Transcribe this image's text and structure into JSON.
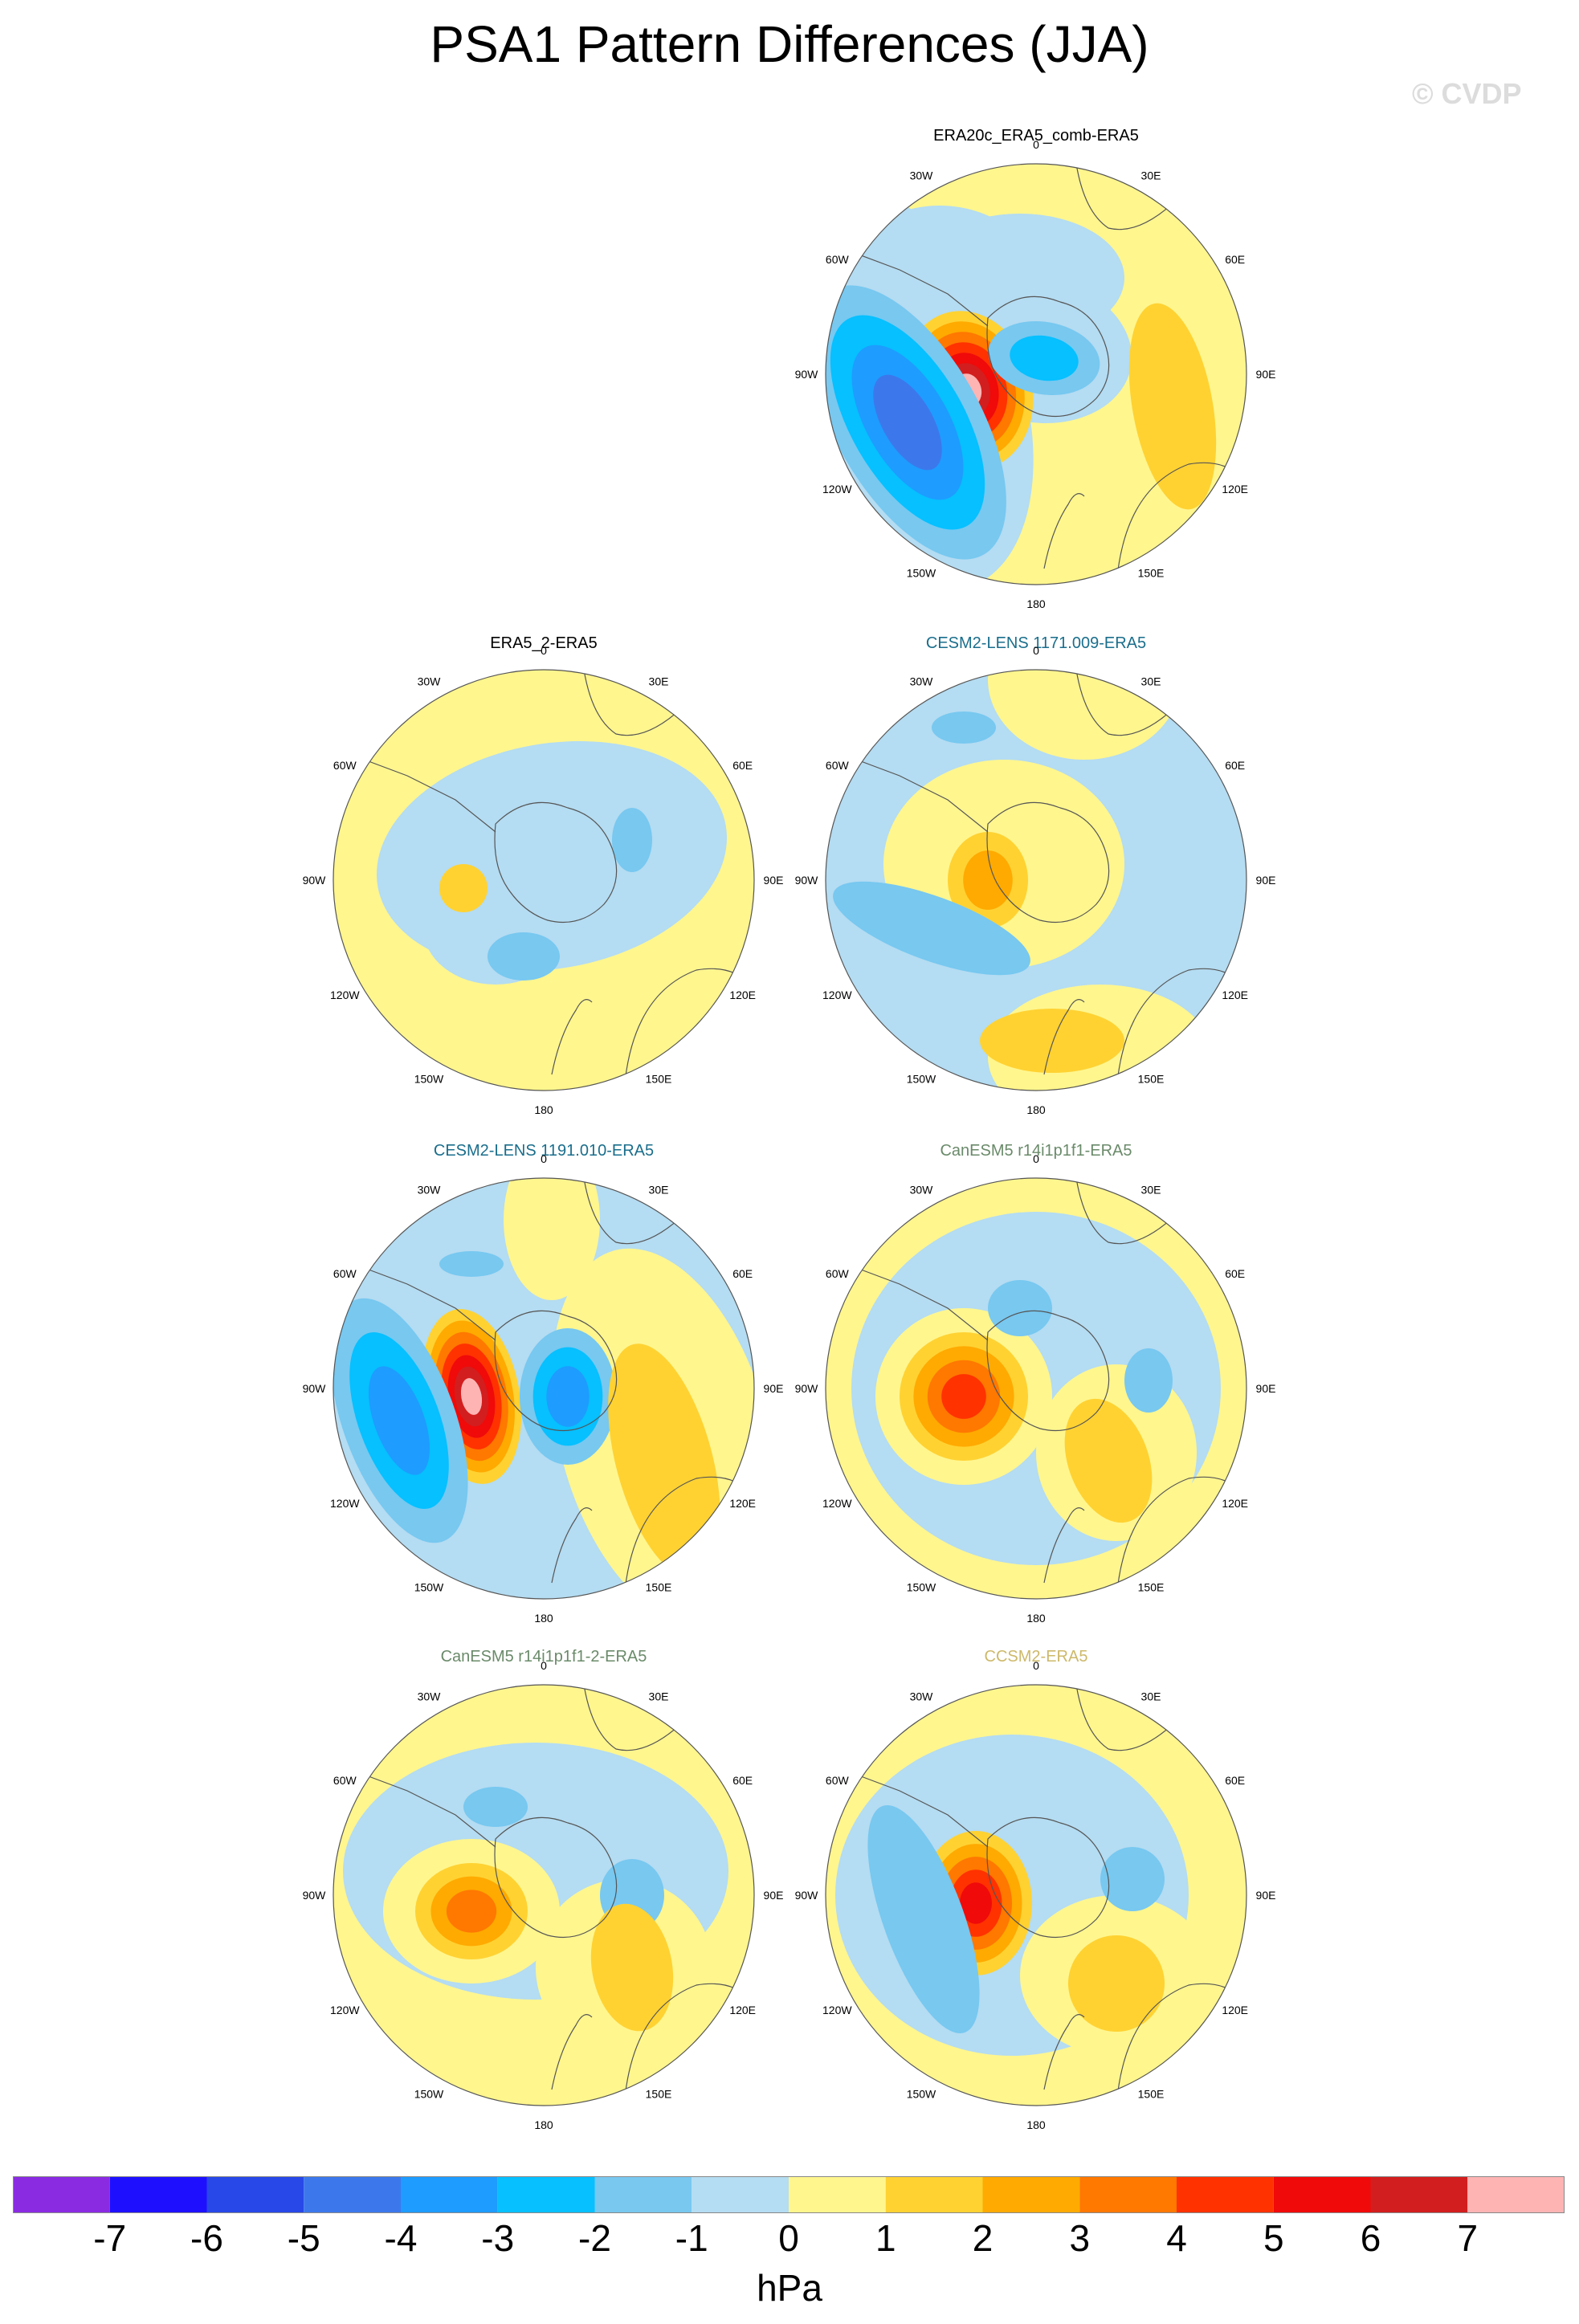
{
  "title": "PSA1 Pattern Differences (JJA)",
  "watermark": "© CVDP",
  "unit": "hPa",
  "lon_labels": [
    "0",
    "30E",
    "60E",
    "90E",
    "120E",
    "150E",
    "180",
    "150W",
    "120W",
    "90W",
    "60W",
    "30W"
  ],
  "colorbar": {
    "ticks": [
      "-7",
      "-6",
      "-5",
      "-4",
      "-3",
      "-2",
      "-1",
      "0",
      "1",
      "2",
      "3",
      "4",
      "5",
      "6",
      "7"
    ],
    "colors": [
      "#8a2be2",
      "#1e10ff",
      "#2848e8",
      "#3c78ec",
      "#1e9cff",
      "#06c0ff",
      "#78c8f0",
      "#b4dcf2",
      "#fff68e",
      "#ffd232",
      "#ffaa00",
      "#ff7800",
      "#ff3200",
      "#f00a0a",
      "#d21e1e",
      "#ffb4b4"
    ]
  },
  "panels": [
    {
      "id": "p1",
      "title": "ERA20c_ERA5_comb-ERA5",
      "title_color": "#000000"
    },
    {
      "id": "p2",
      "title": "ERA5_2-ERA5",
      "title_color": "#000000"
    },
    {
      "id": "p3",
      "title": "CESM2-LENS 1171.009-ERA5",
      "title_color": "#1a6e8c"
    },
    {
      "id": "p4",
      "title": "CESM2-LENS 1191.010-ERA5",
      "title_color": "#1a6e8c"
    },
    {
      "id": "p5",
      "title": "CanESM5 r14i1p1f1-ERA5",
      "title_color": "#6a8a6a"
    },
    {
      "id": "p6",
      "title": "CanESM5 r14i1p1f1-2-ERA5",
      "title_color": "#6a8a6a"
    },
    {
      "id": "p7",
      "title": "CCSM2-ERA5",
      "title_color": "#cdb96a"
    }
  ]
}
